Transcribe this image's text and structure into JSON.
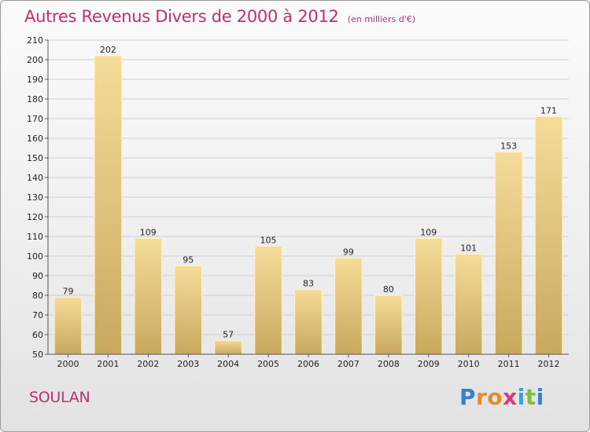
{
  "header": {
    "title": "Autres Revenus Divers de 2000 à 2012",
    "unit": "(en milliers d'€)"
  },
  "footer": {
    "commune": "SOULAN",
    "brand": "Proxiti"
  },
  "colors": {
    "title": "#c0306a",
    "bar_light": "#f5dc98",
    "bar_dark": "#c9a85e",
    "grid": "#cfcfcf",
    "axis_text": "#222222"
  },
  "chart_data": {
    "type": "bar",
    "title": "Autres Revenus Divers de 2000 à 2012",
    "subtitle": "(en milliers d'€)",
    "xlabel": "",
    "ylabel": "",
    "categories": [
      "2000",
      "2001",
      "2002",
      "2003",
      "2004",
      "2005",
      "2006",
      "2007",
      "2008",
      "2009",
      "2010",
      "2011",
      "2012"
    ],
    "values": [
      79,
      202,
      109,
      95,
      57,
      105,
      83,
      99,
      80,
      109,
      101,
      153,
      171
    ],
    "ylim": [
      50,
      210
    ],
    "yticks": [
      50,
      60,
      70,
      80,
      90,
      100,
      110,
      120,
      130,
      140,
      150,
      160,
      170,
      180,
      190,
      200,
      210
    ],
    "grid": true,
    "legend": "none",
    "data_labels": true
  }
}
